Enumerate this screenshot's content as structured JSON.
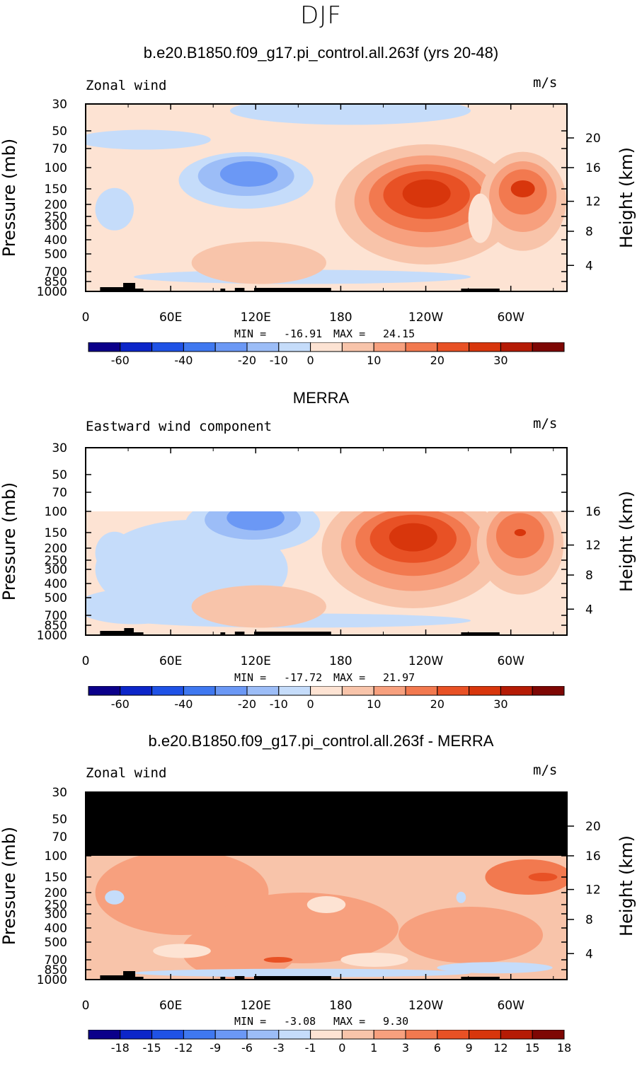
{
  "title": "DJF",
  "chart_data": [
    {
      "type": "heatmap",
      "title": "b.e20.B1850.f09_g17.pi_control.all.263f (yrs 20-48)",
      "subtitle": "Zonal wind",
      "units": "m/s",
      "ylabel": "Pressure (mb)",
      "y2label": "Height (km)",
      "x_ticks": [
        "0",
        "60E",
        "120E",
        "180",
        "120W",
        "60W"
      ],
      "y_ticks": [
        "30",
        "50",
        "70",
        "100",
        "150",
        "200",
        "250",
        "300",
        "400",
        "500",
        "700",
        "850",
        "1000"
      ],
      "y2_ticks": [
        "20",
        "16",
        "12",
        "8",
        "4"
      ],
      "min_label": "MIN =",
      "min_value": "-16.91",
      "max_label": "MAX =",
      "max_value": "24.15",
      "colorbar_ticks": [
        "-60",
        "-40",
        "-20",
        "-10",
        "0",
        "10",
        "20",
        "30"
      ],
      "colorbar_colors": [
        "#0b008a",
        "#0c26c9",
        "#1f52e6",
        "#3f78f0",
        "#6b98f5",
        "#9cbdf7",
        "#c5dcfa",
        "#fde3d3",
        "#f8c4aa",
        "#f7a07e",
        "#f2794f",
        "#e85125",
        "#d8360c",
        "#b51b05",
        "#7e0704"
      ],
      "ylim": [
        1000,
        30
      ],
      "features": [
        {
          "cx": 120,
          "p": 110,
          "value": -16.91
        },
        {
          "cx": 255,
          "p": 170,
          "value": 24.15
        },
        {
          "cx": 327,
          "p": 150,
          "value": 20
        }
      ],
      "top_masked": false
    },
    {
      "type": "heatmap",
      "title": "MERRA",
      "subtitle": "Eastward wind component",
      "units": "m/s",
      "ylabel": "Pressure (mb)",
      "y2label": "Height (km)",
      "x_ticks": [
        "0",
        "60E",
        "120E",
        "180",
        "120W",
        "60W"
      ],
      "y_ticks": [
        "30",
        "50",
        "70",
        "100",
        "150",
        "200",
        "250",
        "300",
        "400",
        "500",
        "700",
        "850",
        "1000"
      ],
      "y2_ticks": [
        "16",
        "12",
        "8",
        "4"
      ],
      "min_label": "MIN =",
      "min_value": "-17.72",
      "max_label": "MAX =",
      "max_value": "21.97",
      "colorbar_ticks": [
        "-60",
        "-40",
        "-20",
        "-10",
        "0",
        "10",
        "20",
        "30"
      ],
      "colorbar_colors": [
        "#0b008a",
        "#0c26c9",
        "#1f52e6",
        "#3f78f0",
        "#6b98f5",
        "#9cbdf7",
        "#c5dcfa",
        "#fde3d3",
        "#f8c4aa",
        "#f7a07e",
        "#f2794f",
        "#e85125",
        "#d8360c",
        "#b51b05",
        "#7e0704"
      ],
      "ylim": [
        1000,
        30
      ],
      "features": [
        {
          "cx": 125,
          "p": 120,
          "value": -17.72
        },
        {
          "cx": 245,
          "p": 170,
          "value": 21.97
        },
        {
          "cx": 325,
          "p": 150,
          "value": 18
        }
      ],
      "top_masked": "blank"
    },
    {
      "type": "heatmap",
      "title": "b.e20.B1850.f09_g17.pi_control.all.263f - MERRA",
      "subtitle": "Zonal wind",
      "units": "m/s",
      "ylabel": "Pressure (mb)",
      "y2label": "Height (km)",
      "x_ticks": [
        "0",
        "60E",
        "120E",
        "180",
        "120W",
        "60W"
      ],
      "y_ticks": [
        "30",
        "50",
        "70",
        "100",
        "150",
        "200",
        "250",
        "300",
        "400",
        "500",
        "700",
        "850",
        "1000"
      ],
      "y2_ticks": [
        "20",
        "16",
        "12",
        "8",
        "4"
      ],
      "min_label": "MIN =",
      "min_value": "-3.08",
      "max_label": "MAX =",
      "max_value": "9.30",
      "colorbar_ticks": [
        "-18",
        "-15",
        "-12",
        "-9",
        "-6",
        "-3",
        "-1",
        "0",
        "1",
        "3",
        "6",
        "9",
        "12",
        "15",
        "18"
      ],
      "colorbar_colors": [
        "#0b008a",
        "#0c26c9",
        "#1f52e6",
        "#3f78f0",
        "#6b98f5",
        "#9cbdf7",
        "#c5dcfa",
        "#fde3d3",
        "#f8c4aa",
        "#f7a07e",
        "#f2794f",
        "#e85125",
        "#d8360c",
        "#b51b05",
        "#7e0704"
      ],
      "ylim": [
        1000,
        30
      ],
      "features": [
        {
          "cx": 335,
          "p": 150,
          "value": 9.3
        }
      ],
      "top_masked": "black"
    }
  ]
}
